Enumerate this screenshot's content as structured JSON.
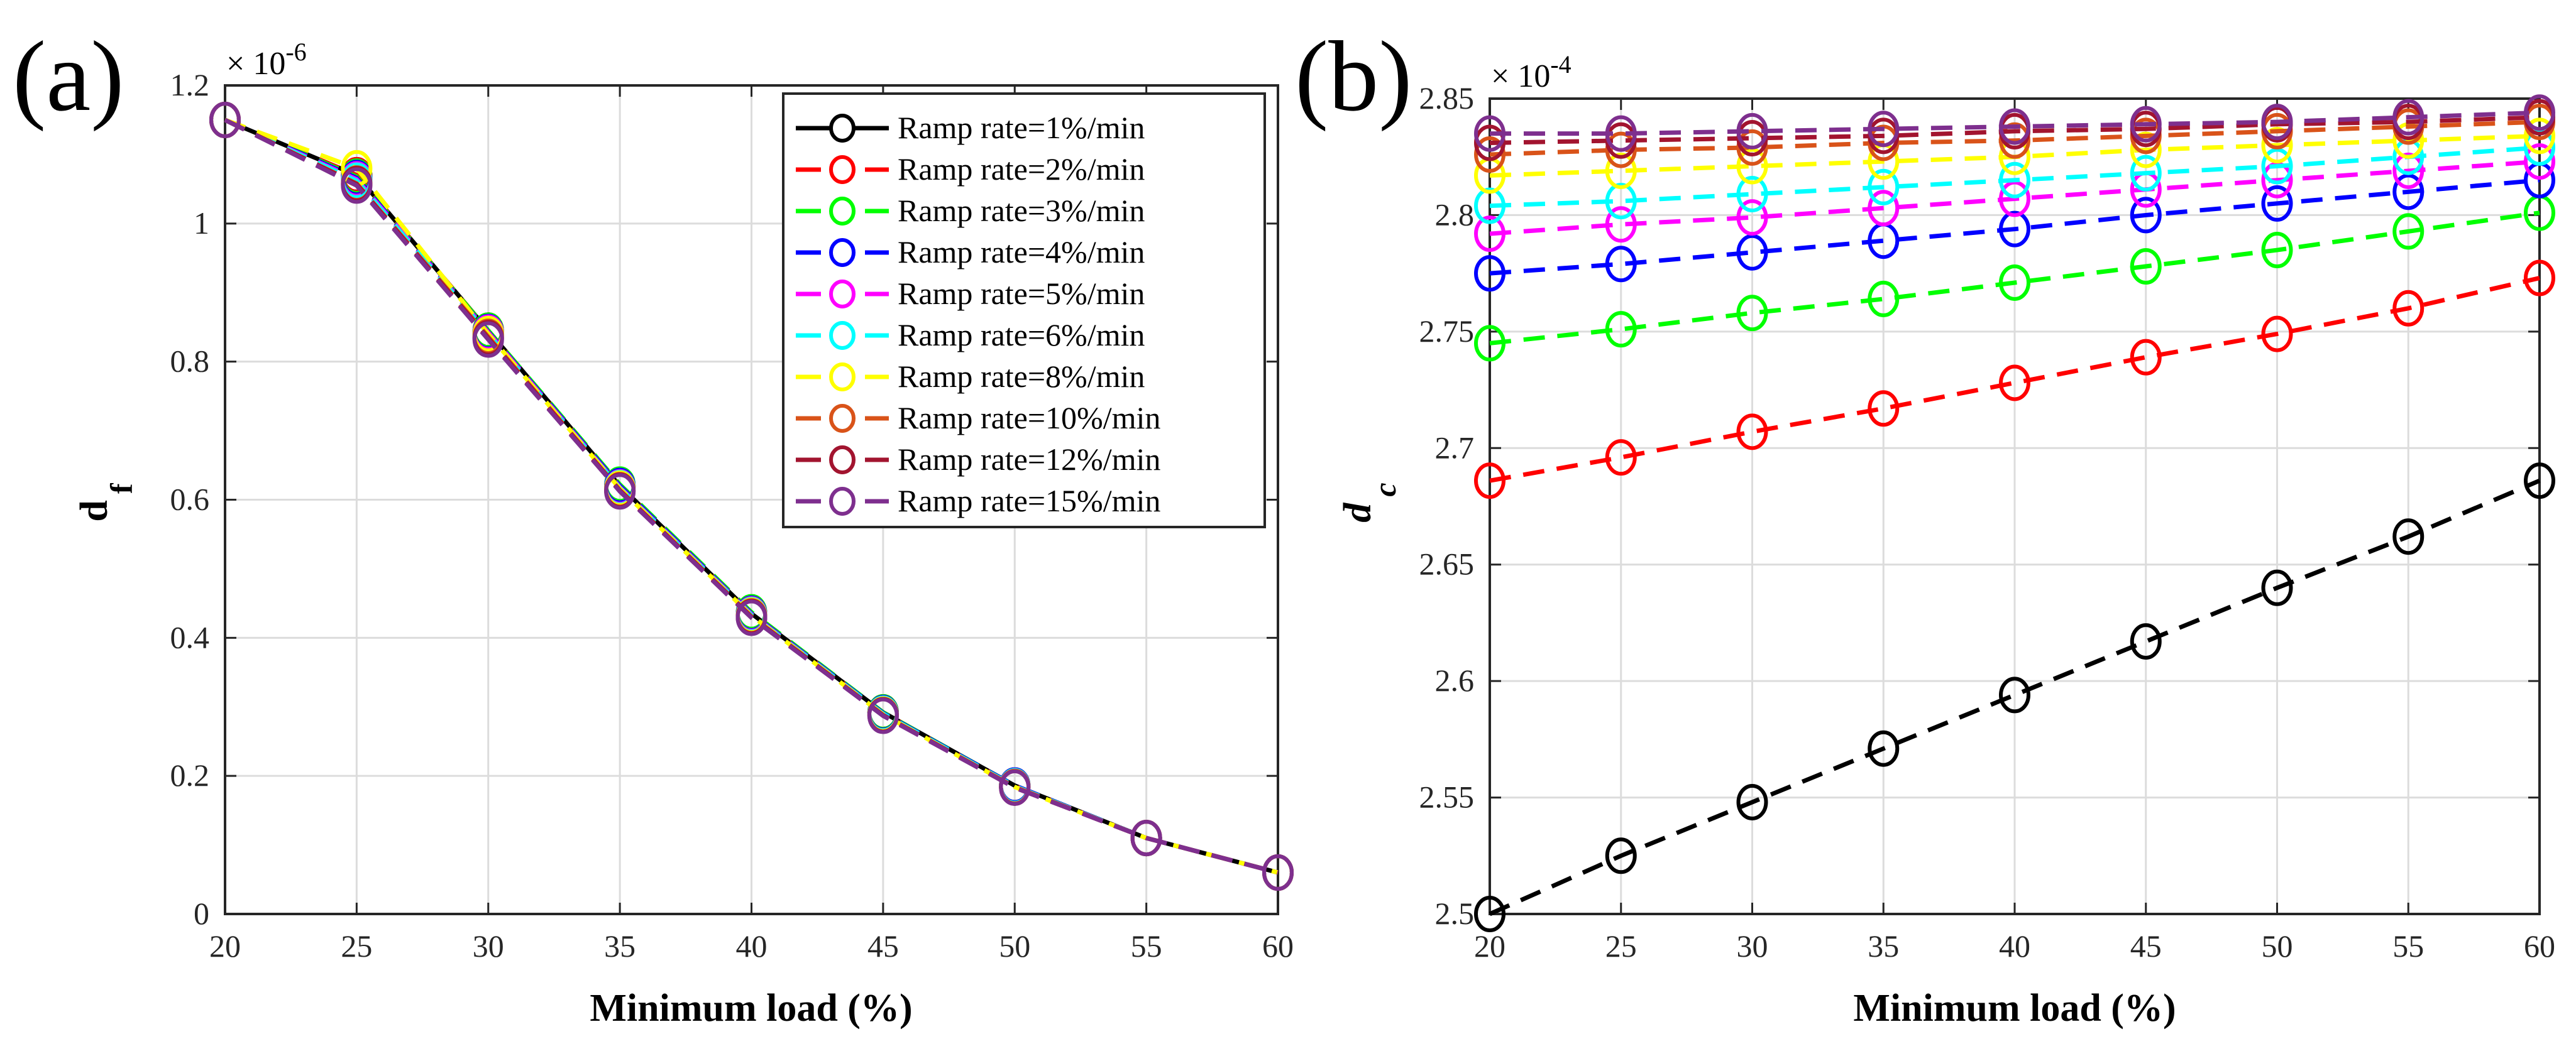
{
  "chart_data": [
    {
      "type": "line",
      "panel_label": "(a)",
      "title": "",
      "xlabel": "Minimum load (%)",
      "ylabel": "d",
      "ylabel_sub": "f",
      "exponent_text": "× 10",
      "exponent": "-6",
      "xlim": [
        20,
        60
      ],
      "ylim": [
        0,
        1.2
      ],
      "xticks": [
        20,
        25,
        30,
        35,
        40,
        45,
        50,
        55,
        60
      ],
      "yticks": [
        0,
        0.2,
        0.4,
        0.6,
        0.8,
        1,
        1.2
      ],
      "ytick_labels": [
        "0",
        "0.2",
        "0.4",
        "0.6",
        "0.8",
        "1",
        "1.2"
      ],
      "grid": true,
      "legend_position": "top-right",
      "x": [
        20,
        25,
        30,
        35,
        40,
        45,
        50,
        55,
        60
      ],
      "series": [
        {
          "name": "Ramp rate=1%/min",
          "color": "#000000",
          "dash": false,
          "values": [
            1.15,
            1.07,
            0.845,
            0.62,
            0.435,
            0.292,
            0.186,
            0.11,
            0.06
          ]
        },
        {
          "name": "Ramp rate=2%/min",
          "color": "#ff0000",
          "dash": true,
          "values": [
            1.15,
            1.07,
            0.845,
            0.62,
            0.435,
            0.292,
            0.186,
            0.11,
            0.06
          ]
        },
        {
          "name": "Ramp rate=3%/min",
          "color": "#00ff00",
          "dash": true,
          "values": [
            1.15,
            1.068,
            0.845,
            0.622,
            0.437,
            0.292,
            0.186,
            0.11,
            0.06
          ]
        },
        {
          "name": "Ramp rate=4%/min",
          "color": "#0000ff",
          "dash": true,
          "values": [
            1.15,
            1.066,
            0.843,
            0.62,
            0.435,
            0.291,
            0.186,
            0.11,
            0.06
          ]
        },
        {
          "name": "Ramp rate=5%/min",
          "color": "#ff00ff",
          "dash": true,
          "values": [
            1.15,
            1.064,
            0.842,
            0.618,
            0.434,
            0.29,
            0.185,
            0.11,
            0.06
          ]
        },
        {
          "name": "Ramp rate=6%/min",
          "color": "#00ffff",
          "dash": true,
          "values": [
            1.15,
            1.062,
            0.84,
            0.617,
            0.433,
            0.29,
            0.185,
            0.11,
            0.06
          ]
        },
        {
          "name": "Ramp rate=8%/min",
          "color": "#ffff00",
          "dash": true,
          "values": [
            1.15,
            1.08,
            0.84,
            0.616,
            0.432,
            0.289,
            0.184,
            0.11,
            0.06
          ]
        },
        {
          "name": "Ramp rate=10%/min",
          "color": "#d95319",
          "dash": true,
          "values": [
            1.15,
            1.058,
            0.836,
            0.614,
            0.431,
            0.288,
            0.184,
            0.11,
            0.06
          ]
        },
        {
          "name": "Ramp rate=12%/min",
          "color": "#a2142f",
          "dash": true,
          "values": [
            1.15,
            1.057,
            0.834,
            0.613,
            0.43,
            0.288,
            0.183,
            0.11,
            0.06
          ]
        },
        {
          "name": "Ramp rate=15%/min",
          "color": "#7e2f8e",
          "dash": true,
          "values": [
            1.15,
            1.055,
            0.832,
            0.612,
            0.429,
            0.287,
            0.183,
            0.11,
            0.06
          ]
        }
      ]
    },
    {
      "type": "line",
      "panel_label": "(b)",
      "title": "",
      "xlabel": "Minimum load (%)",
      "ylabel": "d",
      "ylabel_sub": "c",
      "exponent_text": "× 10",
      "exponent": "-4",
      "xlim": [
        20,
        60
      ],
      "ylim": [
        2.5,
        2.85
      ],
      "xticks": [
        20,
        25,
        30,
        35,
        40,
        45,
        50,
        55,
        60
      ],
      "yticks": [
        2.5,
        2.55,
        2.6,
        2.65,
        2.7,
        2.75,
        2.8,
        2.85
      ],
      "ytick_labels": [
        "2.5",
        "2.55",
        "2.6",
        "2.65",
        "2.7",
        "2.75",
        "2.8",
        "2.85"
      ],
      "grid": true,
      "legend_position": "none",
      "x": [
        20,
        25,
        30,
        35,
        40,
        45,
        50,
        55,
        60
      ],
      "series": [
        {
          "name": "Ramp rate=1%/min",
          "color": "#000000",
          "dash": true,
          "values": [
            2.5,
            2.525,
            2.548,
            2.571,
            2.594,
            2.617,
            2.64,
            2.662,
            2.686
          ]
        },
        {
          "name": "Ramp rate=2%/min",
          "color": "#ff0000",
          "dash": true,
          "values": [
            2.686,
            2.696,
            2.707,
            2.717,
            2.728,
            2.739,
            2.749,
            2.76,
            2.773
          ]
        },
        {
          "name": "Ramp rate=3%/min",
          "color": "#00ff00",
          "dash": true,
          "values": [
            2.745,
            2.751,
            2.758,
            2.764,
            2.771,
            2.778,
            2.785,
            2.793,
            2.801
          ]
        },
        {
          "name": "Ramp rate=4%/min",
          "color": "#0000ff",
          "dash": true,
          "values": [
            2.775,
            2.779,
            2.784,
            2.789,
            2.794,
            2.8,
            2.805,
            2.81,
            2.815
          ]
        },
        {
          "name": "Ramp rate=5%/min",
          "color": "#ff00ff",
          "dash": true,
          "values": [
            2.792,
            2.796,
            2.799,
            2.803,
            2.807,
            2.811,
            2.815,
            2.819,
            2.823
          ]
        },
        {
          "name": "Ramp rate=6%/min",
          "color": "#00ffff",
          "dash": true,
          "values": [
            2.804,
            2.806,
            2.809,
            2.812,
            2.815,
            2.818,
            2.821,
            2.825,
            2.829
          ]
        },
        {
          "name": "Ramp rate=8%/min",
          "color": "#ffff00",
          "dash": true,
          "values": [
            2.817,
            2.819,
            2.821,
            2.823,
            2.825,
            2.828,
            2.83,
            2.832,
            2.834
          ]
        },
        {
          "name": "Ramp rate=10%/min",
          "color": "#d95319",
          "dash": true,
          "values": [
            2.826,
            2.828,
            2.829,
            2.831,
            2.832,
            2.834,
            2.836,
            2.838,
            2.84
          ]
        },
        {
          "name": "Ramp rate=12%/min",
          "color": "#a2142f",
          "dash": true,
          "values": [
            2.831,
            2.832,
            2.833,
            2.834,
            2.836,
            2.837,
            2.839,
            2.84,
            2.842
          ]
        },
        {
          "name": "Ramp rate=15%/min",
          "color": "#7e2f8e",
          "dash": true,
          "values": [
            2.835,
            2.835,
            2.836,
            2.837,
            2.838,
            2.839,
            2.84,
            2.842,
            2.844
          ]
        }
      ]
    }
  ]
}
